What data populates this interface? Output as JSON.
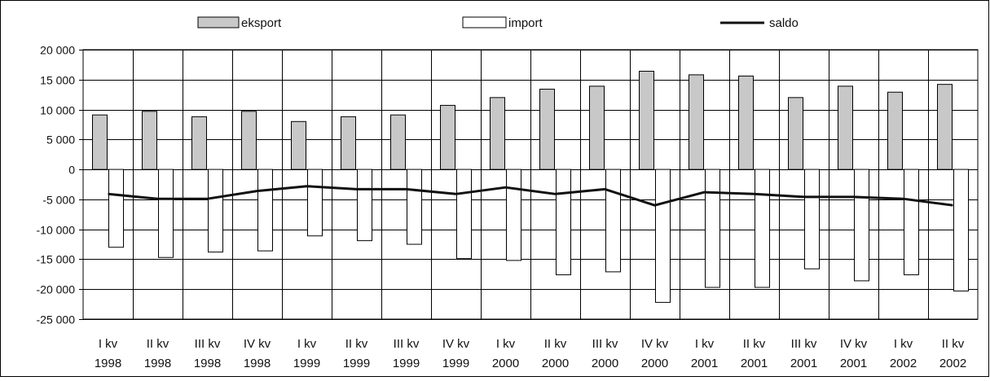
{
  "chart_data": {
    "type": "bar",
    "categories": [
      [
        "I kv",
        "1998"
      ],
      [
        "II kv",
        "1998"
      ],
      [
        "III kv",
        "1998"
      ],
      [
        "IV kv",
        "1998"
      ],
      [
        "I kv",
        "1999"
      ],
      [
        "II kv",
        "1999"
      ],
      [
        "III kv",
        "1999"
      ],
      [
        "IV kv",
        "1999"
      ],
      [
        "I kv",
        "2000"
      ],
      [
        "II kv",
        "2000"
      ],
      [
        "III kv",
        "2000"
      ],
      [
        "IV kv",
        "2000"
      ],
      [
        "I kv",
        "2001"
      ],
      [
        "II kv",
        "2001"
      ],
      [
        "III kv",
        "2001"
      ],
      [
        "IV kv",
        "2001"
      ],
      [
        "I kv",
        "2002"
      ],
      [
        "II kv",
        "2002"
      ]
    ],
    "series": [
      {
        "name": "eksport",
        "kind": "bar",
        "color": "#c8c8c8",
        "values": [
          9100,
          9700,
          8800,
          9700,
          8000,
          8800,
          9100,
          10700,
          12000,
          13400,
          13900,
          16400,
          15800,
          15600,
          12000,
          13900,
          12900,
          14200
        ]
      },
      {
        "name": "import",
        "kind": "bar",
        "color": "#ffffff",
        "values": [
          -13000,
          -14700,
          -13800,
          -13600,
          -11100,
          -11900,
          -12500,
          -14900,
          -15200,
          -17600,
          -17100,
          -22200,
          -19700,
          -19700,
          -16600,
          -18600,
          -17600,
          -20300
        ]
      },
      {
        "name": "saldo",
        "kind": "line",
        "color": "#111111",
        "values": [
          -4100,
          -4900,
          -4900,
          -3600,
          -2800,
          -3300,
          -3300,
          -4100,
          -3000,
          -4100,
          -3300,
          -6000,
          -3800,
          -4100,
          -4600,
          -4600,
          -4900,
          -6000
        ]
      }
    ],
    "y_ticks": [
      "20 000",
      "15 000",
      "10 000",
      "5 000",
      "0",
      "-5 000",
      "-10 000",
      "-15 000",
      "-20 000",
      "-25 000"
    ],
    "ylim": [
      -25000,
      20000
    ],
    "y_step": 5000,
    "grid": true,
    "legend_position": "top",
    "title": "",
    "xlabel": "",
    "ylabel": ""
  }
}
